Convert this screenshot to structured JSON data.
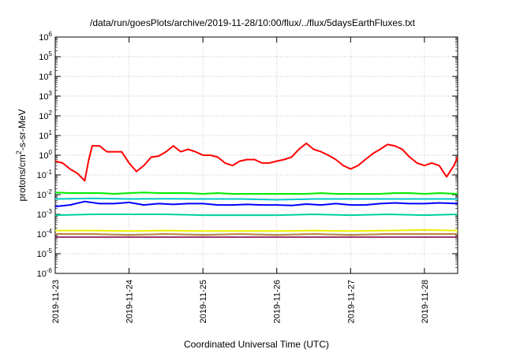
{
  "chart_data": {
    "type": "line",
    "title": "/data/run/goesPlots/archive/2019-11-28/10:00/flux/../flux/5daysEarthFluxes.txt",
    "xlabel": "Coordinated Universal Time (UTC)",
    "ylabel_parts": [
      "protons/cm",
      "2",
      "-s-sr-MeV"
    ],
    "y_scale": "log",
    "ylim_exponents": [
      -6,
      6
    ],
    "y_tick_labels": [
      {
        "base": "10",
        "exp": "-6"
      },
      {
        "base": "10",
        "exp": "-5"
      },
      {
        "base": "10",
        "exp": "-4"
      },
      {
        "base": "10",
        "exp": "-3"
      },
      {
        "base": "10",
        "exp": "-2"
      },
      {
        "base": "10",
        "exp": "-1"
      },
      {
        "base": "10",
        "exp": "0"
      },
      {
        "base": "10",
        "exp": "1"
      },
      {
        "base": "10",
        "exp": "2"
      },
      {
        "base": "10",
        "exp": "3"
      },
      {
        "base": "10",
        "exp": "4"
      },
      {
        "base": "10",
        "exp": "5"
      },
      {
        "base": "10",
        "exp": "6"
      }
    ],
    "x_tick_labels": [
      "2019-11-23",
      "2019-11-24",
      "2019-11-25",
      "2019-11-26",
      "2019-11-27",
      "2019-11-28"
    ],
    "xlim_days": [
      0,
      5.45
    ],
    "grid": true,
    "series": [
      {
        "color": "#ff0000",
        "x": [
          0,
          0.1,
          0.2,
          0.3,
          0.4,
          0.45,
          0.5,
          0.6,
          0.7,
          0.8,
          0.9,
          1.0,
          1.1,
          1.2,
          1.3,
          1.4,
          1.5,
          1.6,
          1.7,
          1.8,
          1.9,
          2.0,
          2.1,
          2.2,
          2.3,
          2.4,
          2.5,
          2.6,
          2.7,
          2.8,
          2.9,
          3.0,
          3.1,
          3.2,
          3.3,
          3.4,
          3.5,
          3.6,
          3.7,
          3.8,
          3.9,
          4.0,
          4.1,
          4.2,
          4.3,
          4.4,
          4.5,
          4.6,
          4.7,
          4.8,
          4.9,
          5.0,
          5.1,
          5.2,
          5.3,
          5.4,
          5.45
        ],
        "y": [
          0.5,
          0.4,
          0.2,
          0.12,
          0.05,
          0.5,
          3,
          3,
          1.5,
          1.5,
          1.5,
          0.4,
          0.15,
          0.3,
          0.8,
          0.9,
          1.5,
          3,
          1.5,
          2,
          1.5,
          1,
          1,
          0.8,
          0.4,
          0.3,
          0.5,
          0.6,
          0.6,
          0.4,
          0.4,
          0.5,
          0.6,
          0.8,
          2,
          4,
          2,
          1.5,
          1,
          0.6,
          0.3,
          0.2,
          0.3,
          0.6,
          1.2,
          2,
          3.5,
          3,
          2,
          0.8,
          0.4,
          0.3,
          0.4,
          0.3,
          0.08,
          0.3,
          0.8
        ]
      },
      {
        "color": "#00ee00",
        "x": [
          0,
          0.2,
          0.4,
          0.6,
          0.8,
          1.0,
          1.2,
          1.4,
          1.6,
          1.8,
          2.0,
          2.2,
          2.4,
          2.6,
          2.8,
          3.0,
          3.2,
          3.4,
          3.6,
          3.8,
          4.0,
          4.2,
          4.4,
          4.6,
          4.8,
          5.0,
          5.2,
          5.45
        ],
        "y": [
          0.013,
          0.012,
          0.012,
          0.012,
          0.011,
          0.012,
          0.013,
          0.012,
          0.012,
          0.012,
          0.011,
          0.012,
          0.011,
          0.011,
          0.011,
          0.011,
          0.011,
          0.011,
          0.012,
          0.011,
          0.011,
          0.011,
          0.011,
          0.012,
          0.012,
          0.011,
          0.012,
          0.011
        ]
      },
      {
        "color": "#00c8c8",
        "x": [
          0,
          0.5,
          1.0,
          1.5,
          2.0,
          2.5,
          3.0,
          3.5,
          4.0,
          4.5,
          5.0,
          5.45
        ],
        "y": [
          0.006,
          0.0065,
          0.006,
          0.0062,
          0.006,
          0.006,
          0.0055,
          0.006,
          0.006,
          0.006,
          0.006,
          0.006
        ]
      },
      {
        "color": "#0000ff",
        "x": [
          0,
          0.2,
          0.4,
          0.6,
          0.8,
          1.0,
          1.2,
          1.4,
          1.6,
          1.8,
          2.0,
          2.2,
          2.4,
          2.6,
          2.8,
          3.0,
          3.2,
          3.4,
          3.6,
          3.8,
          4.0,
          4.2,
          4.4,
          4.6,
          4.8,
          5.0,
          5.2,
          5.45
        ],
        "y": [
          0.0025,
          0.003,
          0.0045,
          0.0035,
          0.0035,
          0.004,
          0.003,
          0.0035,
          0.0032,
          0.0035,
          0.0035,
          0.003,
          0.003,
          0.0032,
          0.003,
          0.003,
          0.0028,
          0.0033,
          0.003,
          0.0035,
          0.003,
          0.003,
          0.0035,
          0.0038,
          0.0035,
          0.0035,
          0.0038,
          0.0035
        ]
      },
      {
        "color": "#00d2a0",
        "x": [
          0,
          0.5,
          1.0,
          1.5,
          2.0,
          2.5,
          3.0,
          3.5,
          4.0,
          4.5,
          5.0,
          5.45
        ],
        "y": [
          0.0009,
          0.001,
          0.001,
          0.001,
          0.0009,
          0.0009,
          0.0009,
          0.001,
          0.0009,
          0.001,
          0.0009,
          0.001
        ]
      },
      {
        "color": "#eeee00",
        "x": [
          0,
          0.5,
          1.0,
          1.5,
          2.0,
          2.5,
          3.0,
          3.5,
          4.0,
          4.5,
          5.0,
          5.45
        ],
        "y": [
          0.00015,
          0.00015,
          0.00014,
          0.00015,
          0.00014,
          0.00014,
          0.00014,
          0.00015,
          0.00014,
          0.00015,
          0.00016,
          0.00015
        ]
      },
      {
        "color": "#b4823c",
        "x": [
          0,
          0.5,
          1.0,
          1.5,
          2.0,
          2.5,
          3.0,
          3.5,
          4.0,
          4.5,
          5.0,
          5.45
        ],
        "y": [
          0.0001,
          0.0001,
          9e-05,
          0.0001,
          9e-05,
          0.0001,
          9e-05,
          0.0001,
          9e-05,
          0.0001,
          0.0001,
          0.0001
        ]
      },
      {
        "color": "#963264",
        "x": [
          0,
          0.2,
          0.4,
          0.6,
          0.8,
          1.0,
          1.2,
          1.4,
          1.6,
          1.8,
          2.0,
          2.2,
          2.4,
          2.6,
          2.8,
          3.0,
          3.2,
          3.4,
          3.6,
          3.8,
          4.0,
          4.2,
          4.4,
          4.6,
          4.8,
          5.0,
          5.2,
          5.45
        ],
        "y": [
          7e-05,
          7e-05,
          7e-05,
          7e-05,
          7e-05,
          7e-05,
          7e-05,
          7e-05,
          7e-05,
          7e-05,
          7e-05,
          7e-05,
          7e-05,
          7e-05,
          7e-05,
          7e-05,
          7e-05,
          7e-05,
          7e-05,
          7e-05,
          7e-05,
          7e-05,
          7e-05,
          7e-05,
          7e-05,
          7e-05,
          7e-05,
          7e-05
        ]
      }
    ]
  }
}
